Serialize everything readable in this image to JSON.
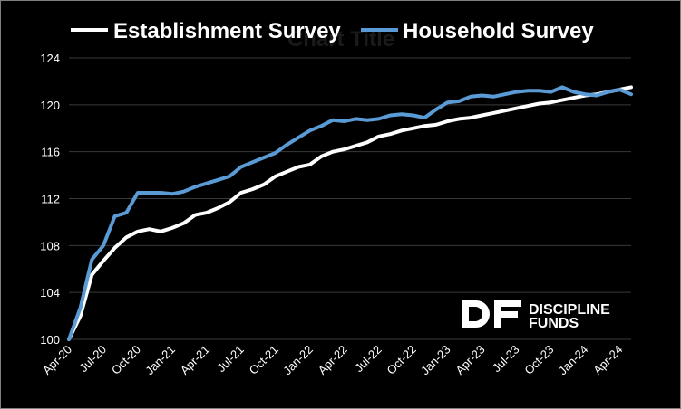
{
  "colors": {
    "background": "#000000",
    "establishment": "#ffffff",
    "household": "#5b9bd5",
    "grid": "#3a3a3a",
    "ghost_title": "#1a1a1a"
  },
  "logo": {
    "mark": "DF",
    "line1": "DISCIPLINE",
    "line2": "FUNDS"
  },
  "chart_data": {
    "type": "line",
    "title": "Chart Title",
    "xlabel": "",
    "ylabel": "",
    "ylim": [
      100,
      124
    ],
    "yticks": [
      100,
      104,
      108,
      112,
      116,
      120,
      124
    ],
    "grid": "horizontal",
    "legend_position": "top",
    "x_tick_labels": [
      "Apr-20",
      "Jul-20",
      "Oct-20",
      "Jan-21",
      "Apr-21",
      "Jul-21",
      "Oct-21",
      "Jan-22",
      "Apr-22",
      "Jul-22",
      "Oct-22",
      "Jan-23",
      "Apr-23",
      "Jul-23",
      "Oct-23",
      "Jan-24",
      "Apr-24"
    ],
    "x": [
      "Apr-20",
      "May-20",
      "Jun-20",
      "Jul-20",
      "Aug-20",
      "Sep-20",
      "Oct-20",
      "Nov-20",
      "Dec-20",
      "Jan-21",
      "Feb-21",
      "Mar-21",
      "Apr-21",
      "May-21",
      "Jun-21",
      "Jul-21",
      "Aug-21",
      "Sep-21",
      "Oct-21",
      "Nov-21",
      "Dec-21",
      "Jan-22",
      "Feb-22",
      "Mar-22",
      "Apr-22",
      "May-22",
      "Jun-22",
      "Jul-22",
      "Aug-22",
      "Sep-22",
      "Oct-22",
      "Nov-22",
      "Dec-22",
      "Jan-23",
      "Feb-23",
      "Mar-23",
      "Apr-23",
      "May-23",
      "Jun-23",
      "Jul-23",
      "Aug-23",
      "Sep-23",
      "Oct-23",
      "Nov-23",
      "Dec-23",
      "Jan-24",
      "Feb-24",
      "Mar-24",
      "Apr-24",
      "May-24"
    ],
    "series": [
      {
        "name": "Establishment Survey",
        "values": [
          100.0,
          102.0,
          105.5,
          106.7,
          107.8,
          108.7,
          109.2,
          109.4,
          109.2,
          109.5,
          109.9,
          110.6,
          110.8,
          111.2,
          111.7,
          112.5,
          112.8,
          113.2,
          113.9,
          114.3,
          114.7,
          114.9,
          115.6,
          116.0,
          116.2,
          116.5,
          116.8,
          117.3,
          117.5,
          117.8,
          118.0,
          118.2,
          118.3,
          118.6,
          118.8,
          118.9,
          119.1,
          119.3,
          119.5,
          119.7,
          119.9,
          120.1,
          120.2,
          120.4,
          120.6,
          120.8,
          120.9,
          121.1,
          121.3,
          121.5
        ]
      },
      {
        "name": "Household Survey",
        "values": [
          100.0,
          102.7,
          106.8,
          108.0,
          110.5,
          110.8,
          112.5,
          112.5,
          112.5,
          112.4,
          112.6,
          113.0,
          113.3,
          113.6,
          113.9,
          114.7,
          115.1,
          115.5,
          115.9,
          116.6,
          117.2,
          117.8,
          118.2,
          118.7,
          118.6,
          118.8,
          118.7,
          118.8,
          119.1,
          119.2,
          119.1,
          118.9,
          119.6,
          120.2,
          120.3,
          120.7,
          120.8,
          120.7,
          120.9,
          121.1,
          121.2,
          121.2,
          121.1,
          121.5,
          121.1,
          120.9,
          120.8,
          121.1,
          121.3,
          120.9
        ]
      }
    ]
  }
}
